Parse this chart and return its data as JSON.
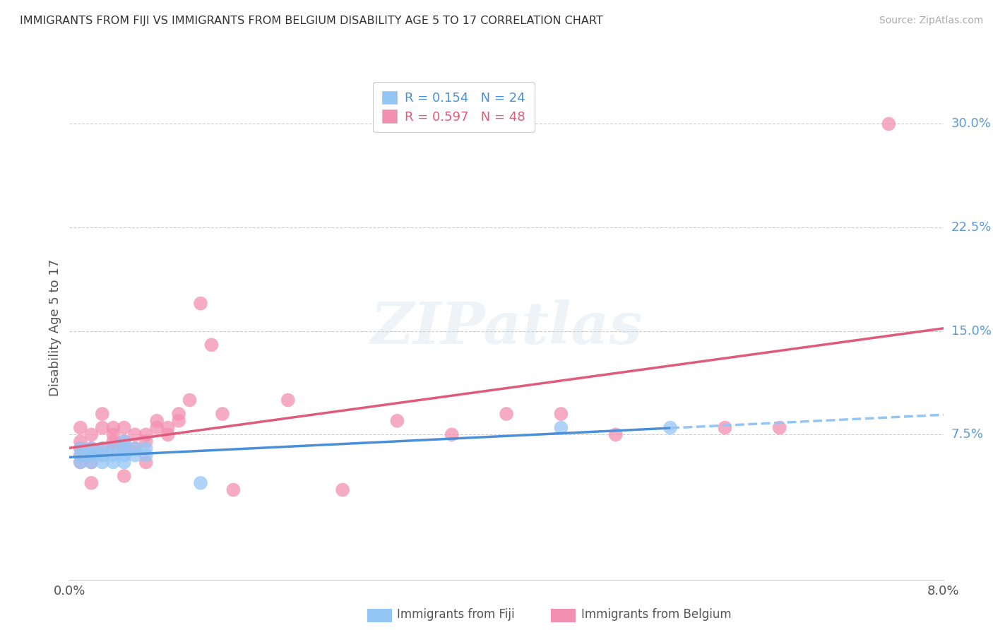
{
  "title": "IMMIGRANTS FROM FIJI VS IMMIGRANTS FROM BELGIUM DISABILITY AGE 5 TO 17 CORRELATION CHART",
  "source": "Source: ZipAtlas.com",
  "ylabel": "Disability Age 5 to 17",
  "xlim": [
    0.0,
    0.08
  ],
  "ylim": [
    -0.03,
    0.335
  ],
  "yticks_right": [
    0.075,
    0.15,
    0.225,
    0.3
  ],
  "ytick_labels_right": [
    "7.5%",
    "15.0%",
    "22.5%",
    "30.0%"
  ],
  "fiji_color": "#94C6F5",
  "fiji_line_color": "#4A90D9",
  "fiji_dash_color": "#94C6F5",
  "belgium_color": "#F48FB1",
  "belgium_line_color": "#E05A7A",
  "fiji_label": "Immigrants from Fiji",
  "belgium_label": "Immigrants from Belgium",
  "fiji_R": "0.154",
  "fiji_N": "24",
  "belgium_R": "0.597",
  "belgium_N": "48",
  "legend_R_fiji_color": "#4A90D9",
  "legend_N_fiji_color": "#4A90D9",
  "legend_R_belgium_color": "#E05A7A",
  "legend_N_belgium_color": "#E05A7A",
  "watermark_text": "ZIPatlas",
  "fiji_x": [
    0.001,
    0.001,
    0.001,
    0.002,
    0.002,
    0.002,
    0.002,
    0.003,
    0.003,
    0.003,
    0.004,
    0.004,
    0.004,
    0.005,
    0.005,
    0.005,
    0.005,
    0.006,
    0.006,
    0.007,
    0.007,
    0.012,
    0.045,
    0.055
  ],
  "fiji_y": [
    0.055,
    0.06,
    0.065,
    0.055,
    0.06,
    0.06,
    0.065,
    0.055,
    0.06,
    0.065,
    0.055,
    0.06,
    0.065,
    0.055,
    0.06,
    0.065,
    0.07,
    0.06,
    0.065,
    0.06,
    0.065,
    0.04,
    0.08,
    0.08
  ],
  "belgium_x": [
    0.001,
    0.001,
    0.001,
    0.001,
    0.001,
    0.002,
    0.002,
    0.002,
    0.002,
    0.002,
    0.003,
    0.003,
    0.003,
    0.003,
    0.004,
    0.004,
    0.004,
    0.004,
    0.005,
    0.005,
    0.005,
    0.005,
    0.006,
    0.006,
    0.007,
    0.007,
    0.007,
    0.008,
    0.008,
    0.009,
    0.009,
    0.01,
    0.01,
    0.011,
    0.012,
    0.013,
    0.014,
    0.015,
    0.02,
    0.025,
    0.03,
    0.035,
    0.04,
    0.045,
    0.05,
    0.06,
    0.065,
    0.075
  ],
  "belgium_y": [
    0.055,
    0.06,
    0.065,
    0.07,
    0.08,
    0.04,
    0.055,
    0.06,
    0.065,
    0.075,
    0.06,
    0.065,
    0.08,
    0.09,
    0.065,
    0.07,
    0.075,
    0.08,
    0.045,
    0.065,
    0.07,
    0.08,
    0.065,
    0.075,
    0.055,
    0.07,
    0.075,
    0.08,
    0.085,
    0.075,
    0.08,
    0.085,
    0.09,
    0.1,
    0.17,
    0.14,
    0.09,
    0.035,
    0.1,
    0.035,
    0.085,
    0.075,
    0.09,
    0.09,
    0.075,
    0.08,
    0.08,
    0.3
  ],
  "fiji_trendline_x0": 0.0,
  "fiji_trendline_x_solid_end": 0.055,
  "fiji_trendline_x_dash_end": 0.08,
  "belgium_trendline_x0": 0.0,
  "belgium_trendline_x_end": 0.08
}
